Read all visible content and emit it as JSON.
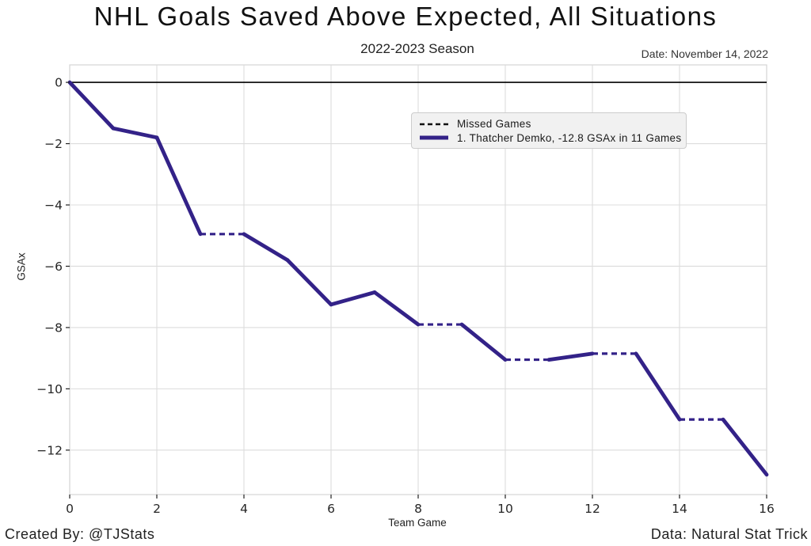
{
  "title": "NHL Goals Saved Above Expected, All Situations",
  "subtitle": "2022-2023 Season",
  "date_label": "Date: November 14, 2022",
  "footer": {
    "left": "Created By: @TJStats",
    "right": "Data: Natural Stat Trick"
  },
  "chart_data": {
    "type": "line",
    "title": "NHL Goals Saved Above Expected, All Situations",
    "subtitle": "2022-2023 Season",
    "xlabel": "Team Game",
    "ylabel": "GSAx",
    "xlim": [
      0,
      16
    ],
    "ylim": [
      -13.45,
      0.57
    ],
    "xticks": [
      0,
      2,
      4,
      6,
      8,
      10,
      12,
      14,
      16
    ],
    "yticks": [
      0,
      -2,
      -4,
      -6,
      -8,
      -10,
      -12
    ],
    "grid": true,
    "zero_line": true,
    "colors": {
      "grid": "#dcdcdc",
      "frame": "#d6d6d6",
      "zero_line": "#000000",
      "tick": "#222222"
    },
    "series": [
      {
        "name": "1. Thatcher Demko, -12.8 GSAx in 11 Games",
        "color": "#332288",
        "x": [
          0,
          1,
          2,
          3,
          4,
          5,
          6,
          7,
          8,
          9,
          10,
          11,
          12,
          13,
          14,
          15,
          16
        ],
        "y": [
          0.0,
          -1.5,
          -1.8,
          -4.95,
          -4.95,
          -5.8,
          -7.25,
          -6.85,
          -7.9,
          -7.9,
          -9.05,
          -9.05,
          -8.85,
          -8.85,
          -11.0,
          -11.0,
          -12.8
        ],
        "missed_games": [
          4,
          9,
          11,
          13,
          15
        ],
        "games_played": 11,
        "final_gsax": -12.8
      }
    ],
    "legend": {
      "position": "upper center-right",
      "entries": [
        {
          "label": "Missed Games",
          "style": "dashed",
          "color": "#111111"
        },
        {
          "label": "1. Thatcher Demko, -12.8 GSAx in 11 Games",
          "style": "solid",
          "color": "#332288"
        }
      ]
    }
  }
}
